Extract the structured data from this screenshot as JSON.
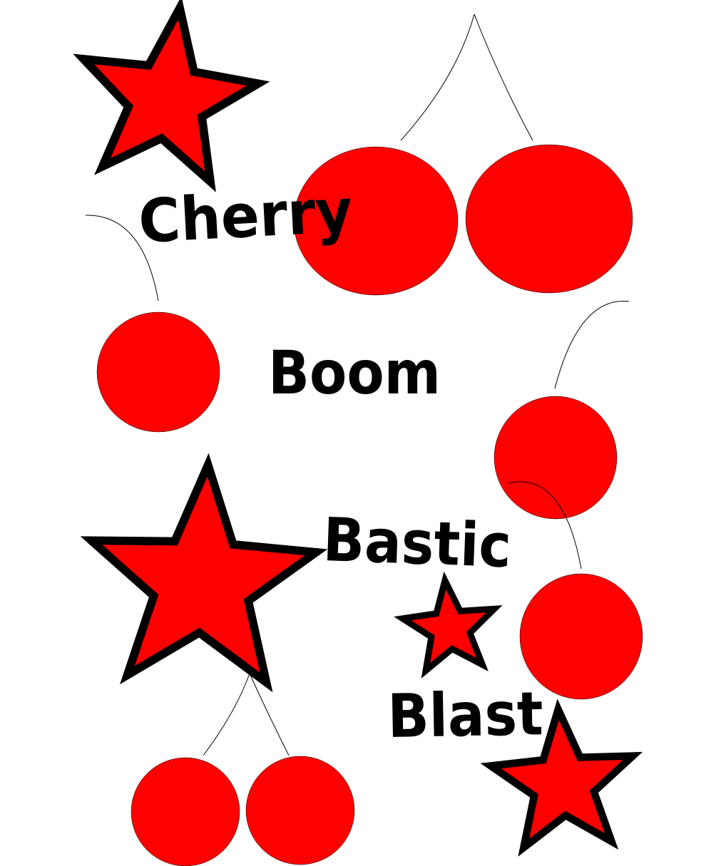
{
  "colors": {
    "background": "#ffffff",
    "cherry": "#ff0000",
    "star_fill": "#ff0000",
    "star_outline": "#000000",
    "stem": "#000000",
    "text": "#000000"
  },
  "words": {
    "w1": "Cherry",
    "w2": "Boom",
    "w3": "Bastic",
    "w4": "Blast"
  },
  "shapes": {
    "stars": 4,
    "cherries": 7
  }
}
